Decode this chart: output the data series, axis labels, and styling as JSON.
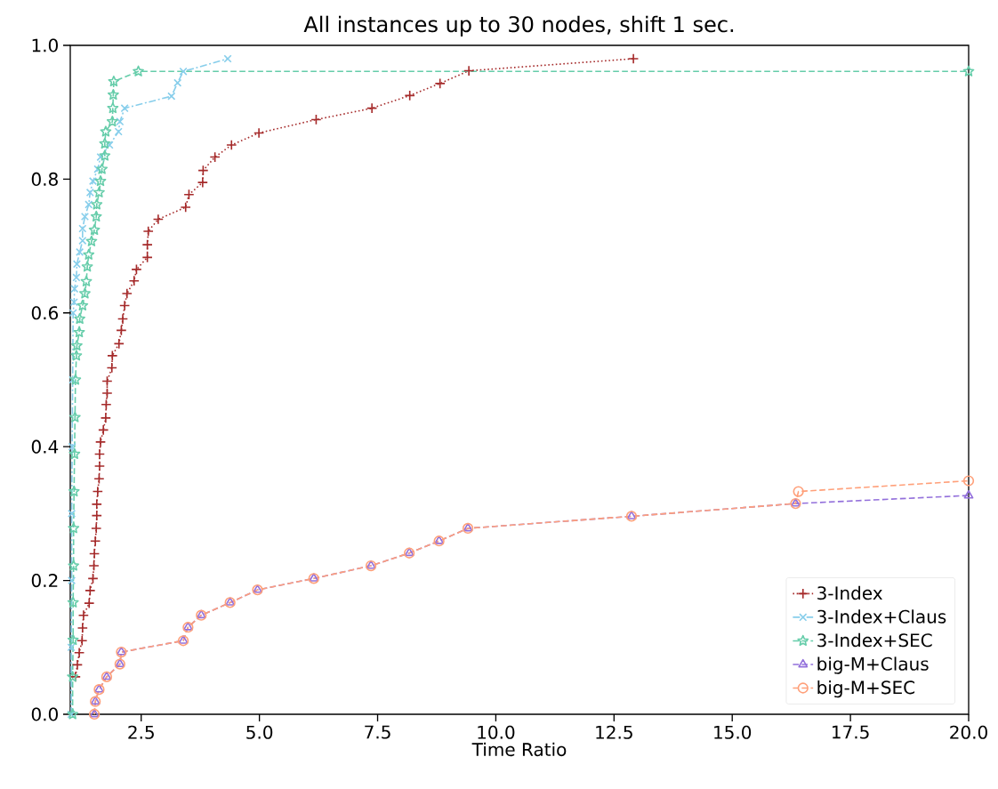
{
  "chart_data": {
    "type": "line",
    "title": "All instances up to 30 nodes, shift 1 sec.",
    "xlabel": "Time Ratio",
    "xlim": [
      1,
      20
    ],
    "ylim": [
      0,
      1
    ],
    "xticks": [
      {
        "value": 2.5,
        "label": "2.5"
      },
      {
        "value": 5,
        "label": "5.0"
      },
      {
        "value": 7.5,
        "label": "7.5"
      },
      {
        "value": 10,
        "label": "10.0"
      },
      {
        "value": 12.5,
        "label": "12.5"
      },
      {
        "value": 15,
        "label": "15.0"
      },
      {
        "value": 17.5,
        "label": "17.5"
      },
      {
        "value": 20,
        "label": "20.0"
      }
    ],
    "yticks": [
      {
        "value": 0,
        "label": "0.0"
      },
      {
        "value": 0.2,
        "label": "0.2"
      },
      {
        "value": 0.4,
        "label": "0.4"
      },
      {
        "value": 0.6,
        "label": "0.6"
      },
      {
        "value": 0.8,
        "label": "0.8"
      },
      {
        "value": 1,
        "label": "1.0"
      }
    ],
    "grid": false,
    "legend": "bottom right",
    "series": [
      {
        "name": "3-Index",
        "color": "#a52a2a",
        "marker": "plus",
        "line_style": "dotted",
        "x": [
          1.11,
          1.15,
          1.19,
          1.25,
          1.26,
          1.28,
          1.4,
          1.42,
          1.48,
          1.5,
          1.51,
          1.53,
          1.55,
          1.56,
          1.56,
          1.58,
          1.61,
          1.62,
          1.62,
          1.64,
          1.7,
          1.75,
          1.76,
          1.78,
          1.78,
          1.88,
          1.89,
          2.03,
          2.08,
          2.11,
          2.15,
          2.2,
          2.35,
          2.4,
          2.63,
          2.63,
          2.65,
          2.86,
          3.44,
          3.51,
          3.8,
          3.81,
          4.06,
          4.41,
          4.99,
          6.2,
          7.38,
          8.18,
          8.82,
          9.43,
          12.91
        ],
        "values": [
          0.056,
          0.074,
          0.092,
          0.11,
          0.129,
          0.148,
          0.166,
          0.185,
          0.203,
          0.222,
          0.24,
          0.259,
          0.278,
          0.297,
          0.314,
          0.333,
          0.352,
          0.371,
          0.389,
          0.407,
          0.425,
          0.443,
          0.463,
          0.48,
          0.498,
          0.518,
          0.536,
          0.554,
          0.574,
          0.591,
          0.611,
          0.629,
          0.648,
          0.665,
          0.683,
          0.702,
          0.722,
          0.74,
          0.758,
          0.777,
          0.795,
          0.813,
          0.833,
          0.851,
          0.869,
          0.889,
          0.906,
          0.925,
          0.943,
          0.962,
          0.98
        ]
      },
      {
        "name": "3-Index+Claus",
        "color": "#87ceeb",
        "marker": "cross",
        "line_style": "dashdot",
        "x": [
          1.02,
          1.02,
          1.03,
          1.03,
          1.04,
          1.05,
          1.06,
          1.08,
          1.09,
          1.13,
          1.14,
          1.2,
          1.26,
          1.26,
          1.31,
          1.39,
          1.42,
          1.48,
          1.58,
          1.64,
          1.83,
          2.02,
          2.05,
          2.15,
          3.14,
          3.27,
          3.39,
          4.33
        ],
        "values": [
          0.0,
          0.1,
          0.2,
          0.3,
          0.4,
          0.5,
          0.6,
          0.616,
          0.636,
          0.653,
          0.673,
          0.691,
          0.708,
          0.726,
          0.744,
          0.762,
          0.78,
          0.797,
          0.815,
          0.833,
          0.851,
          0.871,
          0.886,
          0.906,
          0.924,
          0.944,
          0.961,
          0.98
        ]
      },
      {
        "name": "3-Index+SEC",
        "color": "#66cdaa",
        "marker": "star",
        "line_style": "dashed",
        "x": [
          1.05,
          1.05,
          1.06,
          1.06,
          1.07,
          1.07,
          1.08,
          1.09,
          1.1,
          1.11,
          1.13,
          1.14,
          1.19,
          1.2,
          1.26,
          1.31,
          1.34,
          1.36,
          1.39,
          1.45,
          1.51,
          1.55,
          1.56,
          1.61,
          1.64,
          1.67,
          1.73,
          1.73,
          1.75,
          1.89,
          1.9,
          1.91,
          1.92,
          2.44,
          20
        ],
        "values": [
          0.0,
          0.056,
          0.111,
          0.167,
          0.222,
          0.278,
          0.333,
          0.389,
          0.444,
          0.5,
          0.536,
          0.551,
          0.571,
          0.591,
          0.611,
          0.629,
          0.647,
          0.669,
          0.687,
          0.707,
          0.724,
          0.744,
          0.762,
          0.78,
          0.797,
          0.815,
          0.835,
          0.853,
          0.871,
          0.886,
          0.906,
          0.926,
          0.946,
          0.961,
          0.961
        ]
      },
      {
        "name": "big-M+Claus",
        "color": "#9370db",
        "marker": "triangle",
        "line_style": "dashed",
        "x": [
          1.51,
          1.53,
          1.61,
          1.77,
          2.05,
          2.08,
          3.39,
          3.49,
          3.77,
          4.38,
          4.96,
          6.15,
          7.36,
          8.17,
          8.8,
          9.41,
          12.87,
          16.34,
          20
        ],
        "values": [
          0.0,
          0.019,
          0.037,
          0.056,
          0.075,
          0.093,
          0.11,
          0.13,
          0.148,
          0.167,
          0.186,
          0.203,
          0.222,
          0.241,
          0.259,
          0.278,
          0.296,
          0.315,
          0.327
        ]
      },
      {
        "name": "big-M+SEC",
        "color": "#ffa07a",
        "marker": "circle",
        "line_style": "dashed",
        "x": [
          1.51,
          1.53,
          1.61,
          1.77,
          2.05,
          2.08,
          3.39,
          3.49,
          3.77,
          4.38,
          4.96,
          6.15,
          7.36,
          8.17,
          8.8,
          9.41,
          12.87,
          16.34,
          16.4,
          20
        ],
        "values": [
          0.0,
          0.019,
          0.037,
          0.056,
          0.075,
          0.093,
          0.11,
          0.13,
          0.148,
          0.167,
          0.186,
          0.203,
          0.222,
          0.241,
          0.259,
          0.278,
          0.296,
          0.315,
          0.333,
          0.349
        ]
      }
    ]
  }
}
